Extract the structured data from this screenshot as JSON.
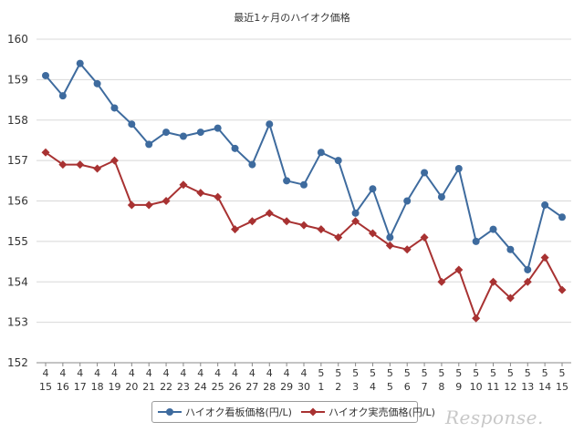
{
  "chart_data": {
    "type": "line",
    "title": "最近1ヶ月のハイオク価格",
    "categories": [
      {
        "month": "4",
        "day": "15"
      },
      {
        "month": "4",
        "day": "16"
      },
      {
        "month": "4",
        "day": "17"
      },
      {
        "month": "4",
        "day": "18"
      },
      {
        "month": "4",
        "day": "19"
      },
      {
        "month": "4",
        "day": "20"
      },
      {
        "month": "4",
        "day": "21"
      },
      {
        "month": "4",
        "day": "22"
      },
      {
        "month": "4",
        "day": "23"
      },
      {
        "month": "4",
        "day": "24"
      },
      {
        "month": "4",
        "day": "25"
      },
      {
        "month": "4",
        "day": "26"
      },
      {
        "month": "4",
        "day": "27"
      },
      {
        "month": "4",
        "day": "28"
      },
      {
        "month": "4",
        "day": "29"
      },
      {
        "month": "4",
        "day": "30"
      },
      {
        "month": "5",
        "day": "1"
      },
      {
        "month": "5",
        "day": "2"
      },
      {
        "month": "5",
        "day": "3"
      },
      {
        "month": "5",
        "day": "4"
      },
      {
        "month": "5",
        "day": "5"
      },
      {
        "month": "5",
        "day": "6"
      },
      {
        "month": "5",
        "day": "7"
      },
      {
        "month": "5",
        "day": "8"
      },
      {
        "month": "5",
        "day": "9"
      },
      {
        "month": "5",
        "day": "10"
      },
      {
        "month": "5",
        "day": "11"
      },
      {
        "month": "5",
        "day": "12"
      },
      {
        "month": "5",
        "day": "13"
      },
      {
        "month": "5",
        "day": "14"
      },
      {
        "month": "5",
        "day": "15"
      }
    ],
    "series": [
      {
        "name": "ハイオク看板価格(円/L)",
        "color": "#3e6b9e",
        "marker": "circle",
        "values": [
          159.1,
          158.6,
          159.4,
          158.9,
          158.3,
          157.9,
          157.4,
          157.7,
          157.6,
          157.7,
          157.8,
          157.3,
          156.9,
          157.9,
          156.5,
          156.4,
          157.2,
          157.0,
          155.7,
          156.3,
          155.1,
          156.0,
          156.7,
          156.1,
          156.8,
          155.0,
          155.3,
          154.8,
          154.3,
          155.9,
          155.6
        ]
      },
      {
        "name": "ハイオク実売価格(円/L)",
        "color": "#a83232",
        "marker": "diamond",
        "values": [
          157.2,
          156.9,
          156.9,
          156.8,
          157.0,
          155.9,
          155.9,
          156.0,
          156.4,
          156.2,
          156.1,
          155.3,
          155.5,
          155.7,
          155.5,
          155.4,
          155.3,
          155.1,
          155.5,
          155.2,
          154.9,
          154.8,
          155.1,
          154.0,
          154.3,
          153.1,
          154.0,
          153.6,
          154.0,
          154.6,
          153.8
        ]
      }
    ],
    "ylim": [
      152,
      160
    ],
    "yticks": [
      160,
      159,
      158,
      157,
      156,
      155,
      154,
      153,
      152
    ],
    "grid": true,
    "legend_position": "bottom"
  },
  "watermark": "Response."
}
